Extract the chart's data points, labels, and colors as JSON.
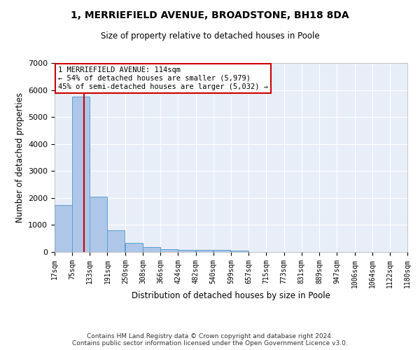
{
  "title": "1, MERRIEFIELD AVENUE, BROADSTONE, BH18 8DA",
  "subtitle": "Size of property relative to detached houses in Poole",
  "xlabel": "Distribution of detached houses by size in Poole",
  "ylabel": "Number of detached properties",
  "bar_color": "#aec6e8",
  "bar_edge_color": "#5a9fd4",
  "background_color": "#e8eef8",
  "grid_color": "#ffffff",
  "bin_edges": [
    17,
    75,
    133,
    191,
    250,
    308,
    366,
    424,
    482,
    540,
    599,
    657,
    715,
    773,
    831,
    889,
    947,
    1006,
    1064,
    1122,
    1180
  ],
  "bin_labels": [
    "17sqm",
    "75sqm",
    "133sqm",
    "191sqm",
    "250sqm",
    "308sqm",
    "366sqm",
    "424sqm",
    "482sqm",
    "540sqm",
    "599sqm",
    "657sqm",
    "715sqm",
    "773sqm",
    "831sqm",
    "889sqm",
    "947sqm",
    "1006sqm",
    "1064sqm",
    "1122sqm",
    "1180sqm"
  ],
  "counts": [
    1750,
    5750,
    2050,
    800,
    340,
    190,
    115,
    90,
    85,
    70,
    60,
    0,
    0,
    0,
    0,
    0,
    0,
    0,
    0,
    0
  ],
  "ylim": [
    0,
    7000
  ],
  "yticks": [
    0,
    1000,
    2000,
    3000,
    4000,
    5000,
    6000,
    7000
  ],
  "property_size": 114,
  "annotation_line1": "1 MERRIEFIELD AVENUE: 114sqm",
  "annotation_line2": "← 54% of detached houses are smaller (5,979)",
  "annotation_line3": "45% of semi-detached houses are larger (5,032) →",
  "annotation_color": "#cc0000",
  "footer_line1": "Contains HM Land Registry data © Crown copyright and database right 2024.",
  "footer_line2": "Contains public sector information licensed under the Open Government Licence v3.0."
}
